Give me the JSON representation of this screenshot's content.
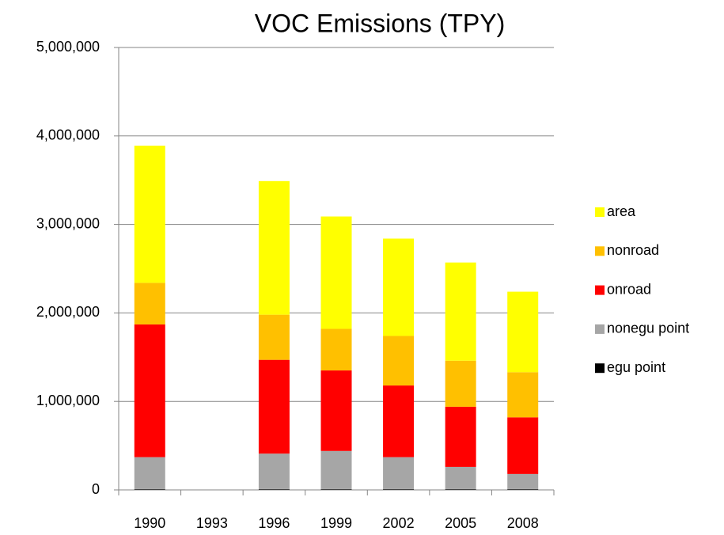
{
  "chart_data": {
    "type": "stacked_bar",
    "title": "VOC Emissions (TPY)",
    "categories": [
      "1990",
      "1993",
      "1996",
      "1999",
      "2002",
      "2005",
      "2008"
    ],
    "series": [
      {
        "name": "egu point",
        "color": "#000000",
        "values": [
          10000,
          null,
          10000,
          10000,
          10000,
          10000,
          10000
        ]
      },
      {
        "name": "nonegu point",
        "color": "#a6a6a6",
        "values": [
          360000,
          null,
          400000,
          430000,
          360000,
          250000,
          170000
        ]
      },
      {
        "name": "onroad",
        "color": "#ff0000",
        "values": [
          1500000,
          null,
          1060000,
          910000,
          810000,
          680000,
          640000
        ]
      },
      {
        "name": "nonroad",
        "color": "#ffc000",
        "values": [
          470000,
          null,
          510000,
          470000,
          560000,
          520000,
          510000
        ]
      },
      {
        "name": "area",
        "color": "#ffff00",
        "values": [
          1550000,
          null,
          1510000,
          1270000,
          1100000,
          1110000,
          910000
        ]
      }
    ],
    "ylim": [
      0,
      5000000
    ],
    "yticks": [
      0,
      {
        "value": 1000000,
        "label": "1,000,000"
      },
      {
        "value": 2000000,
        "label": "2,000,000"
      },
      {
        "value": 3000000,
        "label": "3,000,000"
      },
      {
        "value": 4000000,
        "label": "4,000,000"
      },
      {
        "value": 5000000,
        "label": "5,000,000"
      }
    ],
    "grid": true,
    "legend": "right"
  }
}
